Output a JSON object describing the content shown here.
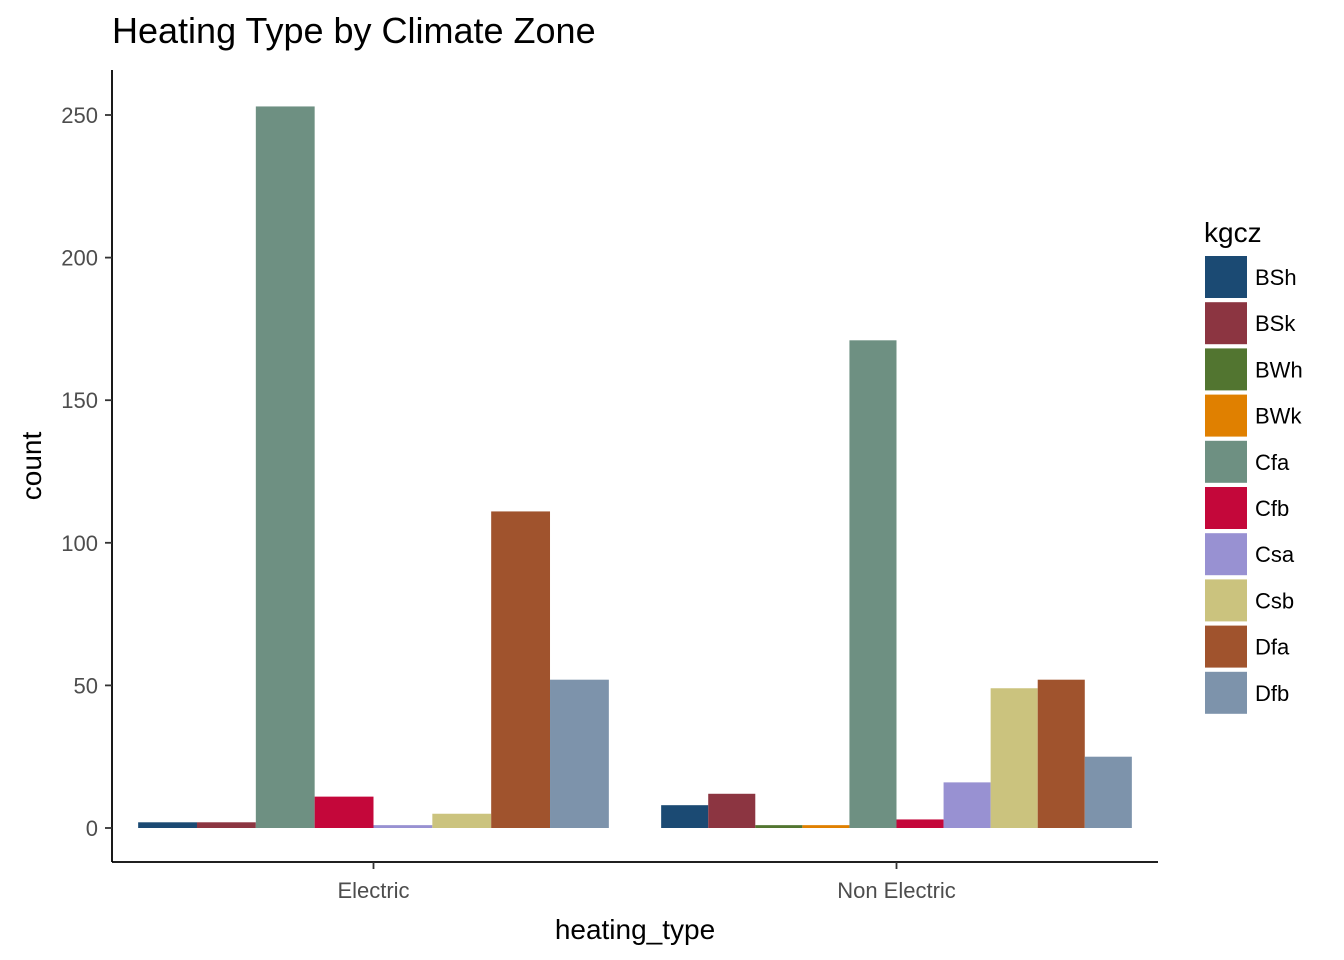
{
  "chart_data": {
    "type": "bar",
    "title": "Heating Type by Climate Zone",
    "xlabel": "heating_type",
    "ylabel": "count",
    "categories": [
      "Electric",
      "Non Electric"
    ],
    "ylim": [
      0,
      265
    ],
    "yticks": [
      0,
      50,
      100,
      150,
      200,
      250
    ],
    "grid": false,
    "legend": {
      "title": "kgcz",
      "position": "right"
    },
    "series": [
      {
        "name": "BSh",
        "color": "#1b4a73",
        "values": [
          2,
          8
        ]
      },
      {
        "name": "BSk",
        "color": "#8c3541",
        "values": [
          2,
          12
        ]
      },
      {
        "name": "BWh",
        "color": "#527530",
        "values": [
          0,
          1
        ]
      },
      {
        "name": "BWk",
        "color": "#e08000",
        "values": [
          0,
          1
        ]
      },
      {
        "name": "Cfa",
        "color": "#6e9082",
        "values": [
          253,
          171
        ]
      },
      {
        "name": "Cfb",
        "color": "#c4073a",
        "values": [
          11,
          3
        ]
      },
      {
        "name": "Csa",
        "color": "#9891d2",
        "values": [
          1,
          16
        ]
      },
      {
        "name": "Csb",
        "color": "#cbc37e",
        "values": [
          5,
          49
        ]
      },
      {
        "name": "Dfa",
        "color": "#a0532d",
        "values": [
          111,
          52
        ]
      },
      {
        "name": "Dfb",
        "color": "#7d93ab",
        "values": [
          52,
          25
        ]
      }
    ]
  }
}
